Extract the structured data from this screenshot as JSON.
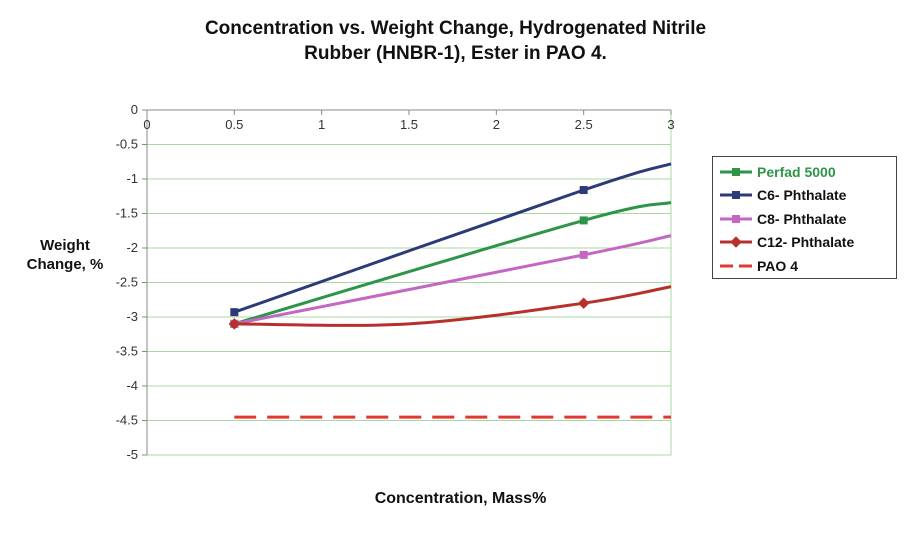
{
  "chart_data": {
    "type": "line",
    "title": [
      "Concentration vs. Weight Change, Hydrogenated Nitrile",
      "Rubber (HNBR-1), Ester in PAO 4."
    ],
    "xlabel": "Concentration,  Mass%",
    "ylabel": [
      "Weight",
      "Change, %"
    ],
    "xlim": [
      0,
      3
    ],
    "ylim": [
      -5,
      0
    ],
    "x_ticks": [
      "0",
      "0.5",
      "1",
      "1.5",
      "2",
      "2.5",
      "3"
    ],
    "y_ticks": [
      "0",
      "-0.5",
      "-1",
      "-1.5",
      "-2",
      "-2.5",
      "-3",
      "-3.5",
      "-4",
      "-4.5",
      "-5"
    ],
    "grid": "horizontal",
    "legend_position": "right",
    "series": [
      {
        "name": "Perfad 5000",
        "color": "#2e9448",
        "marker": "square",
        "x": [
          0.5,
          2.5,
          3
        ],
        "y": [
          -3.1,
          -1.6,
          -1.34
        ],
        "markers_at": [
          0,
          1
        ],
        "label_color": "#2e9448"
      },
      {
        "name": "C6- Phthalate",
        "color": "#2d3a78",
        "marker": "square",
        "x": [
          0.5,
          2.5,
          3
        ],
        "y": [
          -2.93,
          -1.16,
          -0.78
        ],
        "markers_at": [
          0,
          1
        ],
        "label_color": "#111111"
      },
      {
        "name": "C8- Phthalate",
        "color": "#c466c4",
        "marker": "square",
        "x": [
          0.5,
          2.5,
          3
        ],
        "y": [
          -3.1,
          -2.1,
          -1.82
        ],
        "markers_at": [
          0,
          1
        ],
        "label_color": "#111111"
      },
      {
        "name": "C12- Phthalate",
        "color": "#b8302c",
        "marker": "diamond",
        "x": [
          0.5,
          1.5,
          2.5,
          3
        ],
        "y": [
          -3.1,
          -3.1,
          -2.8,
          -2.56
        ],
        "markers_at": [
          0,
          2
        ],
        "label_color": "#111111"
      },
      {
        "name": "PAO 4",
        "color": "#e03a30",
        "marker": "none",
        "dashed": true,
        "x": [
          0.5,
          3
        ],
        "y": [
          -4.45,
          -4.45
        ],
        "markers_at": [],
        "label_color": "#111111"
      }
    ]
  }
}
